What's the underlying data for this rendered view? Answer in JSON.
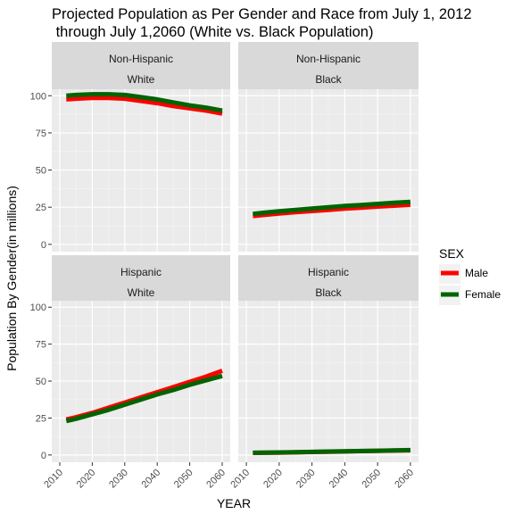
{
  "chart_data": {
    "type": "line",
    "title_line1": "Projected Population as Per Gender and Race from July 1, 2012",
    "title_line2": " through July 1,2060 (White vs. Black Population)",
    "xlabel": "YEAR",
    "ylabel": "Population By Gender(in millions)",
    "xlim": [
      2010,
      2060
    ],
    "ylim": [
      0,
      100
    ],
    "xticks": [
      "2010",
      "2020",
      "2030",
      "2040",
      "2050",
      "2060"
    ],
    "yticks": [
      "0",
      "25",
      "50",
      "75",
      "100"
    ],
    "grid": true,
    "legend": {
      "title": "SEX",
      "placement": "right",
      "entries": [
        {
          "label": "Male",
          "color": "#ff0000"
        },
        {
          "label": "Female",
          "color": "#006400"
        }
      ]
    },
    "x": [
      2012,
      2015,
      2020,
      2025,
      2030,
      2035,
      2040,
      2045,
      2050,
      2055,
      2060
    ],
    "panels": [
      {
        "strip_top": "Non-Hispanic",
        "strip_bottom": "White",
        "series": [
          {
            "name": "Male",
            "color": "#ff0000",
            "values": [
              97.5,
              98,
              98.5,
              98.5,
              98,
              96.5,
              95,
              93,
              91.5,
              90,
              88
            ]
          },
          {
            "name": "Female",
            "color": "#006400",
            "values": [
              100,
              100.5,
              101,
              101,
              100.5,
              99,
              97.5,
              95.5,
              93.5,
              92,
              90
            ]
          }
        ]
      },
      {
        "strip_top": "Non-Hispanic",
        "strip_bottom": "Black",
        "series": [
          {
            "name": "Male",
            "color": "#ff0000",
            "values": [
              19,
              19.7,
              20.7,
              21.6,
              22.4,
              23.2,
              24.0,
              24.7,
              25.4,
              26.0,
              26.6
            ]
          },
          {
            "name": "Female",
            "color": "#006400",
            "values": [
              20.5,
              21.2,
              22.2,
              23.2,
              24.1,
              25.0,
              25.8,
              26.5,
              27.2,
              27.9,
              28.6
            ]
          }
        ]
      },
      {
        "strip_top": "Hispanic",
        "strip_bottom": "White",
        "series": [
          {
            "name": "Male",
            "color": "#ff0000",
            "values": [
              24,
              25.5,
              28.5,
              32,
              35.5,
              39,
              42.5,
              46,
              49.5,
              53,
              57
            ]
          },
          {
            "name": "Female",
            "color": "#006400",
            "values": [
              23,
              24.5,
              27.5,
              30.5,
              34,
              37.5,
              41,
              44,
              47.5,
              50.5,
              53.5
            ]
          }
        ]
      },
      {
        "strip_top": "Hispanic",
        "strip_bottom": "Black",
        "series": [
          {
            "name": "Male",
            "color": "#ff0000",
            "values": [
              1.4,
              1.5,
              1.6,
              1.8,
              2.0,
              2.2,
              2.4,
              2.6,
              2.8,
              3.0,
              3.2
            ]
          },
          {
            "name": "Female",
            "color": "#006400",
            "values": [
              1.5,
              1.6,
              1.7,
              1.9,
              2.1,
              2.3,
              2.5,
              2.7,
              2.9,
              3.1,
              3.3
            ]
          }
        ]
      }
    ]
  }
}
